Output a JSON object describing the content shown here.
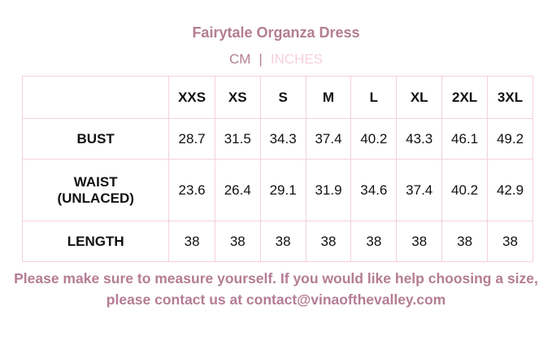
{
  "title": "Fairytale Organza Dress",
  "units": {
    "cm": "CM",
    "separator": "|",
    "inches": "INCHES",
    "active": "CM"
  },
  "colors": {
    "accent": "#b47d93",
    "inactive": "#f5cfe0",
    "border": "#f5d0df"
  },
  "table": {
    "headers": [
      "XXS",
      "XS",
      "S",
      "M",
      "L",
      "XL",
      "2XL",
      "3XL"
    ],
    "rows": [
      {
        "label": "BUST",
        "values": [
          "28.7",
          "31.5",
          "34.3",
          "37.4",
          "40.2",
          "43.3",
          "46.1",
          "49.2"
        ]
      },
      {
        "label": "WAIST (UNLACED)",
        "values": [
          "23.6",
          "26.4",
          "29.1",
          "31.9",
          "34.6",
          "37.4",
          "40.2",
          "42.9"
        ]
      },
      {
        "label": "LENGTH",
        "values": [
          "38",
          "38",
          "38",
          "38",
          "38",
          "38",
          "38",
          "38"
        ]
      }
    ]
  },
  "note": "Please make sure to measure yourself. If you would like help choosing a size, please contact us at contact@vinaofthevalley.com"
}
